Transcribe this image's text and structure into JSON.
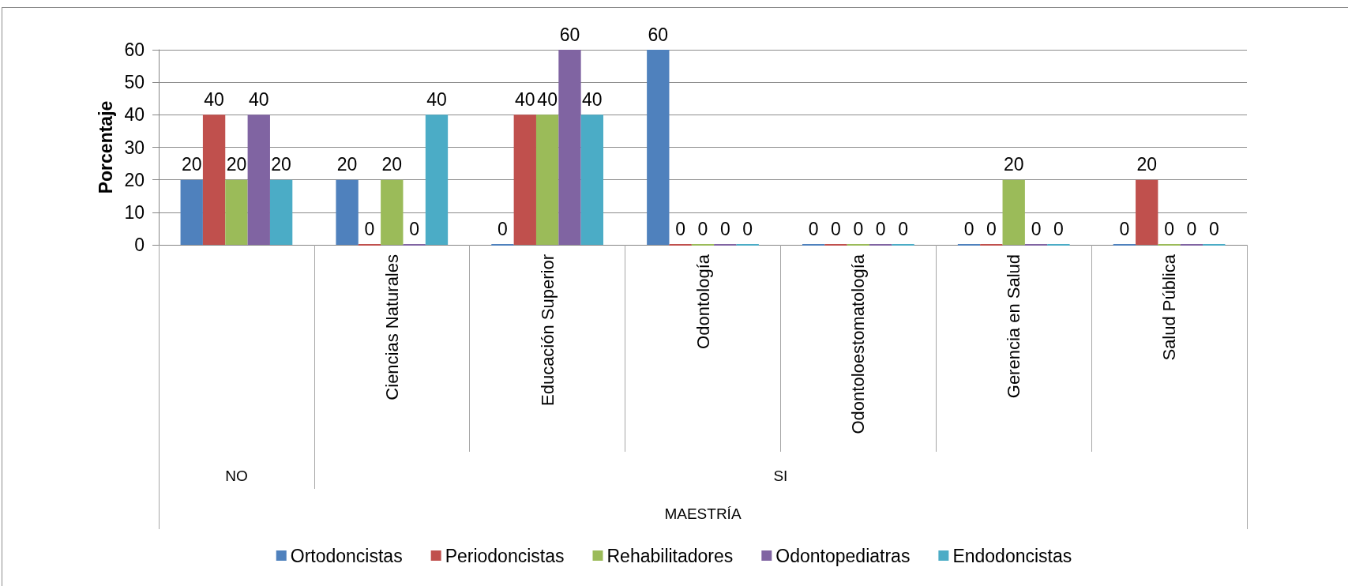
{
  "chart_data": {
    "type": "bar",
    "ylabel": "Porcentaje",
    "xlabel": "MAESTRÍA",
    "categories": [
      null,
      "Ciencias Naturales",
      "Educación Superior",
      "Odontología",
      "Odontoloestomatología",
      "Gerencia en Salud",
      "Salud Pública"
    ],
    "annotations": [
      "NO",
      "SI"
    ],
    "series": [
      {
        "name": "Ortodoncistas",
        "color": "#4f81bd",
        "values": [
          20,
          20,
          0,
          60,
          0,
          0,
          0
        ]
      },
      {
        "name": "Periodoncistas",
        "color": "#c0504d",
        "values": [
          40,
          0,
          40,
          0,
          0,
          0,
          20
        ]
      },
      {
        "name": "Rehabilitadores",
        "color": "#9bbb59",
        "values": [
          20,
          20,
          40,
          0,
          0,
          20,
          0
        ]
      },
      {
        "name": "Odontopediatras",
        "color": "#8064a2",
        "values": [
          40,
          0,
          60,
          0,
          0,
          0,
          0
        ]
      },
      {
        "name": "Endodoncistas",
        "color": "#4bacc6",
        "values": [
          20,
          40,
          40,
          0,
          0,
          0,
          0
        ]
      }
    ],
    "ylim": [
      0,
      60
    ],
    "yticks": [
      0,
      10,
      20,
      30,
      40,
      50,
      60
    ],
    "grid": "y",
    "legend": "bottom",
    "data_labels": true
  }
}
